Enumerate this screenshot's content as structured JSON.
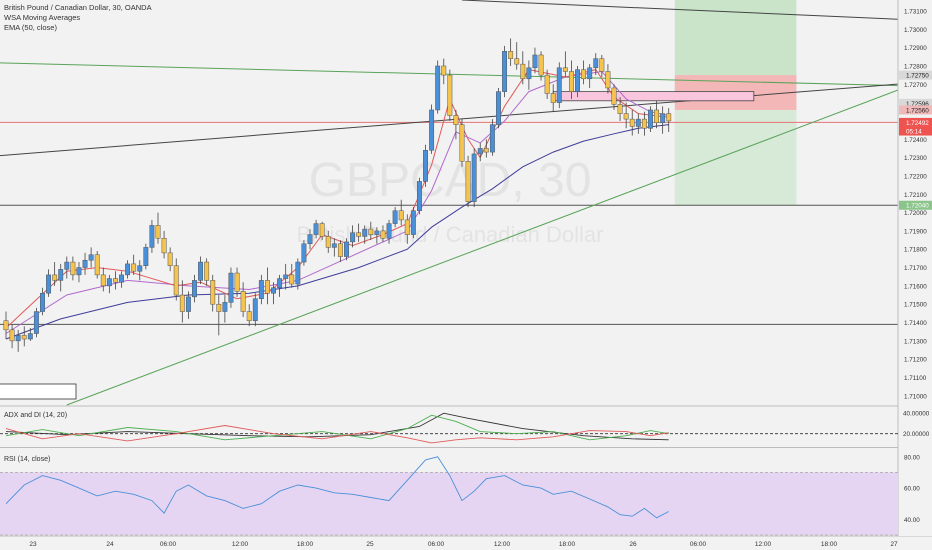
{
  "chart_data": {
    "type": "candlestick",
    "symbol": "GBPCAD",
    "timeframe": "30",
    "watermark": {
      "symbol": "GBPCAD, 30",
      "name": "British Pound / Canadian Dollar"
    },
    "legend": [
      "British Pound / Canadian Dollar, 30, OANDA",
      "WSA Moving Averages",
      "EMA (50, close)"
    ],
    "price_axis": {
      "ticks": [
        "1.73100",
        "1.73000",
        "1.72900",
        "1.72800",
        "1.72700",
        "1.72600",
        "1.72500",
        "1.72400",
        "1.72300",
        "1.72200",
        "1.72100",
        "1.72000",
        "1.71900",
        "1.71800",
        "1.71700",
        "1.71600",
        "1.71500",
        "1.71400",
        "1.71300",
        "1.71200",
        "1.71100",
        "1.71000"
      ],
      "range": [
        1.7095,
        1.7316
      ]
    },
    "price_labels": [
      {
        "text": "1.72750",
        "value": 1.7275,
        "color": "#d9d9d9",
        "text_color": "#222222"
      },
      {
        "text": "1.72596",
        "value": 1.72596,
        "color": "#d9d9d9",
        "text_color": "#222222"
      },
      {
        "text": "1.72560",
        "value": 1.7256,
        "color": "#f0b8b8",
        "text_color": "#222222"
      },
      {
        "text": "1.72492",
        "value": 1.72492,
        "color": "#ef5350",
        "text_color": "#ffffff"
      },
      {
        "text": "05:14",
        "value": 1.72445,
        "color": "#ef5350",
        "text_color": "#ffffff"
      },
      {
        "text": "1.72040",
        "value": 1.7204,
        "color": "#8bc58b",
        "text_color": "#ffffff"
      }
    ],
    "time_axis": {
      "ticks": [
        "23",
        "24",
        "06:00",
        "12:00",
        "18:00",
        "25",
        "06:00",
        "12:00",
        "18:00",
        "26",
        "06:00",
        "12:00",
        "18:00",
        "27"
      ]
    },
    "candles": [
      [
        1.7141,
        1.7146,
        1.7131,
        1.7136
      ],
      [
        1.7136,
        1.7139,
        1.7126,
        1.713
      ],
      [
        1.713,
        1.7136,
        1.7124,
        1.7133
      ],
      [
        1.7133,
        1.7138,
        1.7127,
        1.7131
      ],
      [
        1.7131,
        1.7137,
        1.713,
        1.7134
      ],
      [
        1.7134,
        1.7148,
        1.7132,
        1.7146
      ],
      [
        1.7146,
        1.7159,
        1.7144,
        1.7156
      ],
      [
        1.7156,
        1.7169,
        1.7154,
        1.7166
      ],
      [
        1.7166,
        1.7173,
        1.716,
        1.7163
      ],
      [
        1.7163,
        1.7172,
        1.7157,
        1.7169
      ],
      [
        1.7169,
        1.7176,
        1.7164,
        1.7173
      ],
      [
        1.7173,
        1.7176,
        1.7163,
        1.7166
      ],
      [
        1.7166,
        1.7173,
        1.7162,
        1.717
      ],
      [
        1.717,
        1.7178,
        1.7166,
        1.7174
      ],
      [
        1.7174,
        1.7181,
        1.717,
        1.7177
      ],
      [
        1.7177,
        1.7179,
        1.7164,
        1.7166
      ],
      [
        1.7166,
        1.717,
        1.7157,
        1.716
      ],
      [
        1.716,
        1.7166,
        1.7156,
        1.7164
      ],
      [
        1.7164,
        1.7168,
        1.7158,
        1.7162
      ],
      [
        1.7162,
        1.7168,
        1.7159,
        1.7166
      ],
      [
        1.7166,
        1.7174,
        1.7164,
        1.7172
      ],
      [
        1.7172,
        1.7177,
        1.7166,
        1.7168
      ],
      [
        1.7168,
        1.7174,
        1.7163,
        1.7171
      ],
      [
        1.7171,
        1.7183,
        1.7169,
        1.7181
      ],
      [
        1.7181,
        1.7196,
        1.7178,
        1.7193
      ],
      [
        1.7193,
        1.72,
        1.7183,
        1.7186
      ],
      [
        1.7186,
        1.719,
        1.7175,
        1.7178
      ],
      [
        1.7178,
        1.7181,
        1.7168,
        1.7171
      ],
      [
        1.7171,
        1.7175,
        1.7152,
        1.7155
      ],
      [
        1.7155,
        1.7163,
        1.714,
        1.7146
      ],
      [
        1.7146,
        1.7157,
        1.7142,
        1.7154
      ],
      [
        1.7154,
        1.7166,
        1.7151,
        1.7163
      ],
      [
        1.7163,
        1.7176,
        1.7161,
        1.7173
      ],
      [
        1.7173,
        1.7175,
        1.716,
        1.7163
      ],
      [
        1.7163,
        1.7166,
        1.7146,
        1.715
      ],
      [
        1.715,
        1.7155,
        1.7133,
        1.7146
      ],
      [
        1.7146,
        1.7155,
        1.714,
        1.7151
      ],
      [
        1.7151,
        1.717,
        1.7148,
        1.7167
      ],
      [
        1.7167,
        1.717,
        1.7154,
        1.7157
      ],
      [
        1.7157,
        1.7162,
        1.7143,
        1.7146
      ],
      [
        1.7146,
        1.715,
        1.7138,
        1.7141
      ],
      [
        1.7141,
        1.7156,
        1.7138,
        1.7153
      ],
      [
        1.7153,
        1.7166,
        1.715,
        1.7163
      ],
      [
        1.7163,
        1.717,
        1.715,
        1.7156
      ],
      [
        1.7156,
        1.7162,
        1.715,
        1.7159
      ],
      [
        1.7159,
        1.7166,
        1.7154,
        1.7164
      ],
      [
        1.7164,
        1.7172,
        1.7158,
        1.7166
      ],
      [
        1.7166,
        1.7172,
        1.7159,
        1.7161
      ],
      [
        1.7161,
        1.7175,
        1.7158,
        1.7173
      ],
      [
        1.7173,
        1.7185,
        1.7171,
        1.7183
      ],
      [
        1.7183,
        1.7191,
        1.718,
        1.7188
      ],
      [
        1.7188,
        1.7196,
        1.7186,
        1.7194
      ],
      [
        1.7194,
        1.7195,
        1.7185,
        1.7187
      ],
      [
        1.7187,
        1.719,
        1.7178,
        1.7181
      ],
      [
        1.7181,
        1.7186,
        1.7176,
        1.7183
      ],
      [
        1.7183,
        1.7185,
        1.7173,
        1.7176
      ],
      [
        1.7176,
        1.7186,
        1.7174,
        1.7184
      ],
      [
        1.7184,
        1.7193,
        1.7181,
        1.7189
      ],
      [
        1.7189,
        1.7194,
        1.7184,
        1.7187
      ],
      [
        1.7187,
        1.7193,
        1.7183,
        1.7191
      ],
      [
        1.7191,
        1.7195,
        1.7185,
        1.7188
      ],
      [
        1.7188,
        1.7192,
        1.7183,
        1.719
      ],
      [
        1.719,
        1.7193,
        1.7184,
        1.7186
      ],
      [
        1.7186,
        1.7196,
        1.7183,
        1.7194
      ],
      [
        1.7194,
        1.7203,
        1.7192,
        1.7201
      ],
      [
        1.7201,
        1.7207,
        1.7193,
        1.7196
      ],
      [
        1.7196,
        1.7199,
        1.7183,
        1.7188
      ],
      [
        1.7188,
        1.7203,
        1.7186,
        1.7201
      ],
      [
        1.7201,
        1.7219,
        1.7199,
        1.7217
      ],
      [
        1.7217,
        1.7237,
        1.7214,
        1.7234
      ],
      [
        1.7234,
        1.7259,
        1.7232,
        1.7256
      ],
      [
        1.7256,
        1.7283,
        1.7254,
        1.728
      ],
      [
        1.728,
        1.7284,
        1.727,
        1.7275
      ],
      [
        1.7275,
        1.7278,
        1.725,
        1.7253
      ],
      [
        1.7253,
        1.7256,
        1.724,
        1.7248
      ],
      [
        1.7248,
        1.7251,
        1.7225,
        1.7228
      ],
      [
        1.7228,
        1.7231,
        1.7203,
        1.7206
      ],
      [
        1.7206,
        1.7235,
        1.7203,
        1.7232
      ],
      [
        1.7232,
        1.7238,
        1.7228,
        1.7235
      ],
      [
        1.7235,
        1.724,
        1.723,
        1.7233
      ],
      [
        1.7233,
        1.7251,
        1.7231,
        1.7248
      ],
      [
        1.7248,
        1.7268,
        1.7246,
        1.7266
      ],
      [
        1.7266,
        1.7291,
        1.7263,
        1.7288
      ],
      [
        1.7288,
        1.7295,
        1.728,
        1.7284
      ],
      [
        1.7284,
        1.7293,
        1.7278,
        1.7281
      ],
      [
        1.7281,
        1.7288,
        1.727,
        1.7273
      ],
      [
        1.7273,
        1.7283,
        1.7267,
        1.7279
      ],
      [
        1.7279,
        1.729,
        1.7276,
        1.7286
      ],
      [
        1.7286,
        1.7288,
        1.7272,
        1.7275
      ],
      [
        1.7275,
        1.7278,
        1.7262,
        1.7265
      ],
      [
        1.7265,
        1.727,
        1.7255,
        1.726
      ],
      [
        1.726,
        1.7282,
        1.7257,
        1.7279
      ],
      [
        1.7279,
        1.7288,
        1.7274,
        1.7277
      ],
      [
        1.7277,
        1.7283,
        1.7262,
        1.7266
      ],
      [
        1.7266,
        1.728,
        1.7263,
        1.7278
      ],
      [
        1.7278,
        1.7283,
        1.727,
        1.7273
      ],
      [
        1.7273,
        1.7281,
        1.7268,
        1.7279
      ],
      [
        1.7279,
        1.7287,
        1.7275,
        1.7284
      ],
      [
        1.7284,
        1.7286,
        1.7274,
        1.7277
      ],
      [
        1.7277,
        1.7281,
        1.7265,
        1.7268
      ],
      [
        1.7268,
        1.727,
        1.7256,
        1.7259
      ],
      [
        1.7259,
        1.7263,
        1.725,
        1.7254
      ],
      [
        1.7254,
        1.726,
        1.7246,
        1.7251
      ],
      [
        1.7251,
        1.7256,
        1.7242,
        1.7247
      ],
      [
        1.7247,
        1.7254,
        1.7243,
        1.7251
      ],
      [
        1.7251,
        1.7255,
        1.7242,
        1.7246
      ],
      [
        1.7246,
        1.7258,
        1.7244,
        1.7256
      ],
      [
        1.7256,
        1.7261,
        1.7246,
        1.7249
      ],
      [
        1.7249,
        1.7258,
        1.7243,
        1.7254
      ],
      [
        1.7254,
        1.7257,
        1.7244,
        1.725
      ]
    ],
    "ema50": [
      [
        0,
        1.7131
      ],
      [
        9,
        1.7142
      ],
      [
        20,
        1.7151
      ],
      [
        30,
        1.7155
      ],
      [
        40,
        1.7156
      ],
      [
        48,
        1.716
      ],
      [
        58,
        1.717
      ],
      [
        66,
        1.718
      ],
      [
        70,
        1.7192
      ],
      [
        75,
        1.7203
      ],
      [
        80,
        1.7213
      ],
      [
        85,
        1.7225
      ],
      [
        90,
        1.7233
      ],
      [
        95,
        1.7239
      ],
      [
        100,
        1.7243
      ],
      [
        104,
        1.7246
      ],
      [
        109,
        1.7248
      ]
    ],
    "wsa_fast": [
      [
        0,
        1.7137
      ],
      [
        10,
        1.7168
      ],
      [
        15,
        1.717
      ],
      [
        20,
        1.7168
      ],
      [
        28,
        1.716
      ],
      [
        32,
        1.7162
      ],
      [
        38,
        1.7153
      ],
      [
        43,
        1.7156
      ],
      [
        48,
        1.717
      ],
      [
        52,
        1.7188
      ],
      [
        57,
        1.7182
      ],
      [
        62,
        1.7188
      ],
      [
        66,
        1.7194
      ],
      [
        70,
        1.7226
      ],
      [
        73,
        1.7262
      ],
      [
        76,
        1.724
      ],
      [
        78,
        1.723
      ],
      [
        82,
        1.7258
      ],
      [
        86,
        1.7278
      ],
      [
        92,
        1.7274
      ],
      [
        97,
        1.7278
      ],
      [
        100,
        1.7263
      ],
      [
        104,
        1.7254
      ],
      [
        109,
        1.7252
      ]
    ],
    "wsa_slow": [
      [
        0,
        1.7134
      ],
      [
        10,
        1.7155
      ],
      [
        20,
        1.7163
      ],
      [
        30,
        1.716
      ],
      [
        40,
        1.7158
      ],
      [
        48,
        1.7163
      ],
      [
        56,
        1.7175
      ],
      [
        62,
        1.7184
      ],
      [
        66,
        1.719
      ],
      [
        70,
        1.7212
      ],
      [
        74,
        1.7244
      ],
      [
        78,
        1.7238
      ],
      [
        82,
        1.725
      ],
      [
        86,
        1.7266
      ],
      [
        92,
        1.7274
      ],
      [
        98,
        1.7277
      ],
      [
        102,
        1.7262
      ],
      [
        106,
        1.7255
      ],
      [
        109,
        1.7253
      ]
    ],
    "lines": {
      "horizontal": [
        1.72492,
        1.7204,
        1.7139
      ],
      "resistance": [
        [
          -5,
          1.723
        ],
        [
          150,
          1.7271
        ]
      ],
      "support_green": [
        [
          10,
          1.7095
        ],
        [
          150,
          1.7271
        ]
      ],
      "upper_green": [
        [
          -5,
          1.7282
        ],
        [
          150,
          1.7269
        ]
      ],
      "top_black": [
        [
          75,
          1.7316
        ],
        [
          150,
          1.7305
        ]
      ],
      "pink_box": [
        [
          90,
          1.7266
        ],
        [
          123,
          1.7261
        ]
      ]
    },
    "positions": [
      {
        "type": "long",
        "start": 110,
        "end": 130,
        "target": 1.7316,
        "entry": 1.7275,
        "stop": 1.7256
      },
      {
        "type": "short",
        "start": 110,
        "end": 130,
        "stop": 1.7275,
        "entry": 1.7256,
        "target": 1.7204
      }
    ],
    "adx": {
      "title": "ADX and DI (14, 20)",
      "ticks": [
        "40.00000",
        "20.00000"
      ],
      "range": [
        8,
        46
      ],
      "threshold": 20,
      "adx_line": [
        [
          0,
          22
        ],
        [
          10,
          19
        ],
        [
          20,
          22
        ],
        [
          30,
          20
        ],
        [
          40,
          18
        ],
        [
          50,
          17
        ],
        [
          60,
          19
        ],
        [
          68,
          27
        ],
        [
          72,
          40
        ],
        [
          76,
          35
        ],
        [
          85,
          25
        ],
        [
          95,
          18
        ],
        [
          103,
          15
        ],
        [
          109,
          14
        ]
      ],
      "plus_di": [
        [
          0,
          18
        ],
        [
          6,
          24
        ],
        [
          12,
          18
        ],
        [
          20,
          26
        ],
        [
          28,
          22
        ],
        [
          36,
          14
        ],
        [
          44,
          18
        ],
        [
          52,
          22
        ],
        [
          60,
          15
        ],
        [
          66,
          25
        ],
        [
          70,
          38
        ],
        [
          74,
          32
        ],
        [
          78,
          22
        ],
        [
          84,
          20
        ],
        [
          90,
          22
        ],
        [
          96,
          14
        ],
        [
          102,
          18
        ],
        [
          106,
          23
        ],
        [
          109,
          20
        ]
      ],
      "minus_di": [
        [
          0,
          25
        ],
        [
          6,
          15
        ],
        [
          12,
          20
        ],
        [
          20,
          13
        ],
        [
          28,
          20
        ],
        [
          36,
          28
        ],
        [
          44,
          20
        ],
        [
          52,
          15
        ],
        [
          60,
          22
        ],
        [
          66,
          16
        ],
        [
          70,
          11
        ],
        [
          74,
          14
        ],
        [
          78,
          16
        ],
        [
          84,
          14
        ],
        [
          90,
          17
        ],
        [
          96,
          23
        ],
        [
          102,
          22
        ],
        [
          106,
          18
        ],
        [
          109,
          21
        ]
      ]
    },
    "rsi": {
      "title": "RSI (14, close)",
      "ticks": [
        "80.00",
        "60.00",
        "40.00"
      ],
      "range": [
        30,
        85
      ],
      "band": [
        70,
        30
      ],
      "values": [
        [
          0,
          50
        ],
        [
          3,
          62
        ],
        [
          6,
          68
        ],
        [
          9,
          65
        ],
        [
          12,
          60
        ],
        [
          15,
          55
        ],
        [
          18,
          58
        ],
        [
          21,
          56
        ],
        [
          24,
          52
        ],
        [
          26,
          44
        ],
        [
          28,
          58
        ],
        [
          30,
          62
        ],
        [
          33,
          55
        ],
        [
          36,
          52
        ],
        [
          39,
          47
        ],
        [
          42,
          50
        ],
        [
          45,
          58
        ],
        [
          48,
          62
        ],
        [
          51,
          60
        ],
        [
          54,
          57
        ],
        [
          57,
          56
        ],
        [
          60,
          54
        ],
        [
          63,
          52
        ],
        [
          66,
          65
        ],
        [
          69,
          78
        ],
        [
          71,
          80
        ],
        [
          73,
          68
        ],
        [
          75,
          52
        ],
        [
          77,
          58
        ],
        [
          79,
          66
        ],
        [
          82,
          68
        ],
        [
          85,
          62
        ],
        [
          88,
          60
        ],
        [
          90,
          56
        ],
        [
          93,
          58
        ],
        [
          96,
          53
        ],
        [
          99,
          48
        ],
        [
          101,
          43
        ],
        [
          103,
          42
        ],
        [
          105,
          47
        ],
        [
          107,
          41
        ],
        [
          109,
          45
        ]
      ]
    }
  }
}
